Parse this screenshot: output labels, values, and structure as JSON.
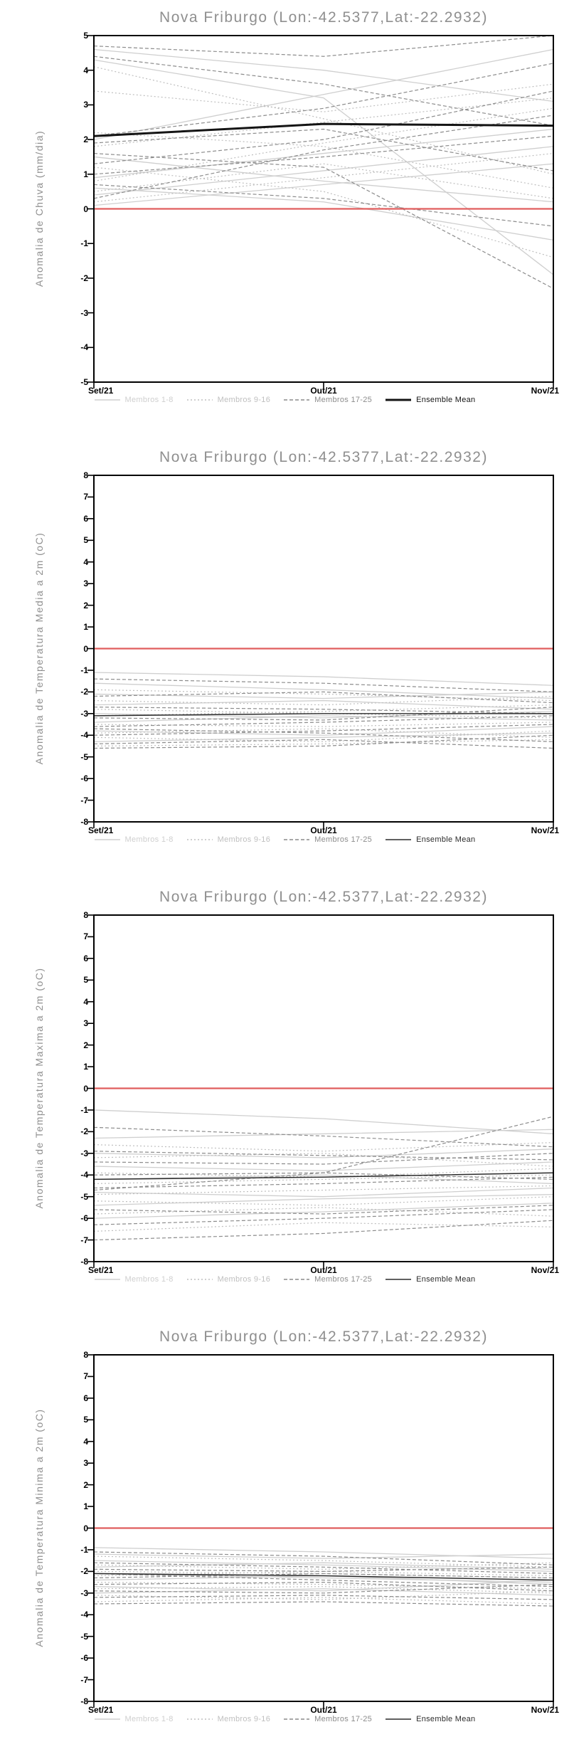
{
  "page": {
    "background": "#ffffff"
  },
  "chart_data": [
    {
      "type": "line",
      "title": "Nova Friburgo (Lon:-42.5377,Lat:-22.2932)",
      "ylabel": "Anomalia de Chuva (mm/dia)",
      "x_labels": [
        "Set/21",
        "Out/21",
        "Nov/21"
      ],
      "ylim": [
        -5,
        5
      ],
      "yticks": [
        5,
        4,
        3,
        2,
        1,
        0,
        -1,
        -2,
        -3,
        -4,
        -5
      ],
      "zero_line": {
        "y": 0,
        "color": "#e05d5d"
      },
      "groups": [
        {
          "name": "Membros 1-8",
          "color": "#cfcfcf",
          "dash": "",
          "width": 1.3,
          "members": [
            [
              4.3,
              3.2,
              -1.9
            ],
            [
              4.6,
              4.0,
              3.1
            ],
            [
              2.0,
              3.3,
              4.6
            ],
            [
              1.5,
              0.8,
              0.2
            ],
            [
              0.9,
              1.6,
              2.3
            ],
            [
              0.6,
              0.2,
              -0.9
            ],
            [
              0.4,
              1.1,
              1.8
            ],
            [
              0.1,
              0.7,
              1.3
            ]
          ]
        },
        {
          "name": "Membros 9-16",
          "color": "#bfbfbf",
          "dash": "2,3",
          "width": 1.2,
          "members": [
            [
              4.1,
              2.6,
              1.0
            ],
            [
              3.4,
              2.8,
              3.6
            ],
            [
              2.2,
              1.8,
              0.6
            ],
            [
              1.8,
              2.5,
              3.2
            ],
            [
              1.2,
              0.5,
              -1.4
            ],
            [
              0.8,
              1.9,
              2.9
            ],
            [
              0.5,
              1.3,
              0.3
            ],
            [
              0.2,
              0.9,
              1.6
            ]
          ]
        },
        {
          "name": "Membros 17-25",
          "color": "#8c8c8c",
          "dash": "5,3",
          "width": 1.2,
          "members": [
            [
              4.7,
              4.4,
              5.0
            ],
            [
              4.4,
              3.6,
              2.4
            ],
            [
              2.1,
              2.9,
              4.2
            ],
            [
              1.9,
              2.3,
              1.1
            ],
            [
              1.6,
              1.2,
              -2.3
            ],
            [
              1.3,
              2.0,
              3.4
            ],
            [
              1.0,
              1.5,
              2.1
            ],
            [
              0.7,
              0.3,
              -0.5
            ],
            [
              0.3,
              1.7,
              2.7
            ]
          ]
        }
      ],
      "ensemble_mean": {
        "name": "Ensemble Mean",
        "color": "#141414",
        "width": 3,
        "values": [
          2.1,
          2.45,
          2.4
        ]
      }
    },
    {
      "type": "line",
      "title": "Nova Friburgo (Lon:-42.5377,Lat:-22.2932)",
      "ylabel": "Anomalia de Temperatura Media a 2m (oC)",
      "x_labels": [
        "Set/21",
        "Out/21",
        "Nov/21"
      ],
      "ylim": [
        -8,
        8
      ],
      "yticks": [
        8,
        7,
        6,
        5,
        4,
        3,
        2,
        1,
        0,
        -1,
        -2,
        -3,
        -4,
        -5,
        -6,
        -7,
        -8
      ],
      "zero_line": {
        "y": 0,
        "color": "#e05d5d"
      },
      "groups": [
        {
          "name": "Membros 1-8",
          "color": "#cfcfcf",
          "dash": "",
          "width": 1.3,
          "members": [
            [
              -1.1,
              -1.3,
              -1.7
            ],
            [
              -1.6,
              -1.9,
              -2.3
            ],
            [
              -2.1,
              -2.3,
              -2.0
            ],
            [
              -2.6,
              -2.4,
              -2.8
            ],
            [
              -3.0,
              -3.2,
              -2.9
            ],
            [
              -3.4,
              -3.1,
              -3.3
            ],
            [
              -3.8,
              -4.0,
              -3.6
            ],
            [
              -4.3,
              -4.1,
              -3.9
            ]
          ]
        },
        {
          "name": "Membros 9-16",
          "color": "#bfbfbf",
          "dash": "2,3",
          "width": 1.2,
          "members": [
            [
              -1.9,
              -2.1,
              -2.4
            ],
            [
              -2.4,
              -2.6,
              -2.2
            ],
            [
              -2.8,
              -3.0,
              -3.2
            ],
            [
              -3.1,
              -2.9,
              -2.6
            ],
            [
              -3.5,
              -3.6,
              -3.4
            ],
            [
              -3.9,
              -3.7,
              -4.1
            ],
            [
              -4.1,
              -4.3,
              -3.8
            ],
            [
              -4.5,
              -4.4,
              -4.2
            ]
          ]
        },
        {
          "name": "Membros 17-25",
          "color": "#8c8c8c",
          "dash": "5,3",
          "width": 1.2,
          "members": [
            [
              -1.4,
              -1.6,
              -2.0
            ],
            [
              -2.2,
              -2.0,
              -2.5
            ],
            [
              -2.7,
              -2.8,
              -3.0
            ],
            [
              -3.2,
              -3.3,
              -2.7
            ],
            [
              -3.6,
              -3.4,
              -3.1
            ],
            [
              -3.7,
              -3.9,
              -4.3
            ],
            [
              -4.0,
              -3.8,
              -3.5
            ],
            [
              -4.4,
              -4.2,
              -4.6
            ],
            [
              -4.6,
              -4.5,
              -4.0
            ]
          ]
        }
      ],
      "ensemble_mean": {
        "name": "Ensemble Mean",
        "color": "#2b2b2b",
        "width": 1.5,
        "values": [
          -3.1,
          -3.0,
          -3.0
        ]
      }
    },
    {
      "type": "line",
      "title": "Nova Friburgo (Lon:-42.5377,Lat:-22.2932)",
      "ylabel": "Anomalia de Temperatura Maxima a 2m (oC)",
      "x_labels": [
        "Set/21",
        "Out/21",
        "Nov/21"
      ],
      "ylim": [
        -8,
        8
      ],
      "yticks": [
        8,
        7,
        6,
        5,
        4,
        3,
        2,
        1,
        0,
        -1,
        -2,
        -3,
        -4,
        -5,
        -6,
        -7,
        -8
      ],
      "zero_line": {
        "y": 0,
        "color": "#e05d5d"
      },
      "groups": [
        {
          "name": "Membros 1-8",
          "color": "#cfcfcf",
          "dash": "",
          "width": 1.3,
          "members": [
            [
              -1.0,
              -1.4,
              -2.1
            ],
            [
              -2.3,
              -2.1,
              -1.9
            ],
            [
              -3.0,
              -3.2,
              -2.8
            ],
            [
              -3.6,
              -3.8,
              -3.4
            ],
            [
              -4.2,
              -4.0,
              -4.4
            ],
            [
              -4.8,
              -5.0,
              -4.6
            ],
            [
              -5.4,
              -5.1,
              -4.9
            ],
            [
              -6.0,
              -5.7,
              -5.3
            ]
          ]
        },
        {
          "name": "Membros 9-16",
          "color": "#bfbfbf",
          "dash": "2,3",
          "width": 1.2,
          "members": [
            [
              -2.6,
              -2.9,
              -2.5
            ],
            [
              -3.2,
              -3.0,
              -3.6
            ],
            [
              -3.9,
              -4.1,
              -3.7
            ],
            [
              -4.4,
              -4.2,
              -4.0
            ],
            [
              -4.9,
              -4.7,
              -4.5
            ],
            [
              -5.2,
              -5.4,
              -5.0
            ],
            [
              -5.8,
              -5.5,
              -5.9
            ],
            [
              -6.6,
              -6.2,
              -6.4
            ]
          ]
        },
        {
          "name": "Membros 17-25",
          "color": "#8c8c8c",
          "dash": "5,3",
          "width": 1.2,
          "members": [
            [
              -1.8,
              -2.2,
              -2.7
            ],
            [
              -2.9,
              -3.1,
              -3.3
            ],
            [
              -3.4,
              -3.5,
              -3.0
            ],
            [
              -4.0,
              -3.9,
              -4.2
            ],
            [
              -4.6,
              -4.4,
              -4.1
            ],
            [
              -4.7,
              -3.9,
              -1.3
            ],
            [
              -5.6,
              -5.8,
              -5.4
            ],
            [
              -6.3,
              -6.0,
              -5.6
            ],
            [
              -7.0,
              -6.7,
              -6.1
            ]
          ]
        }
      ],
      "ensemble_mean": {
        "name": "Ensemble Mean",
        "color": "#2b2b2b",
        "width": 1.5,
        "values": [
          -4.2,
          -4.1,
          -3.9
        ]
      }
    },
    {
      "type": "line",
      "title": "Nova Friburgo (Lon:-42.5377,Lat:-22.2932)",
      "ylabel": "Anomalia de Temperatura Minima a 2m (oC)",
      "x_labels": [
        "Set/21",
        "Out/21",
        "Nov/21"
      ],
      "ylim": [
        -8,
        8
      ],
      "yticks": [
        8,
        7,
        6,
        5,
        4,
        3,
        2,
        1,
        0,
        -1,
        -2,
        -3,
        -4,
        -5,
        -6,
        -7,
        -8
      ],
      "zero_line": {
        "y": 0,
        "color": "#e05d5d"
      },
      "groups": [
        {
          "name": "Membros 1-8",
          "color": "#cfcfcf",
          "dash": "",
          "width": 1.3,
          "members": [
            [
              -0.9,
              -1.1,
              -1.4
            ],
            [
              -1.2,
              -1.4,
              -1.2
            ],
            [
              -1.5,
              -1.7,
              -2.0
            ],
            [
              -1.8,
              -1.6,
              -1.9
            ],
            [
              -2.1,
              -2.3,
              -2.5
            ],
            [
              -2.4,
              -2.2,
              -2.6
            ],
            [
              -2.7,
              -2.9,
              -2.4
            ],
            [
              -3.0,
              -2.8,
              -3.1
            ]
          ]
        },
        {
          "name": "Membros 9-16",
          "color": "#bfbfbf",
          "dash": "2,3",
          "width": 1.2,
          "members": [
            [
              -1.3,
              -1.5,
              -1.8
            ],
            [
              -1.7,
              -1.9,
              -1.6
            ],
            [
              -2.0,
              -2.1,
              -2.3
            ],
            [
              -2.2,
              -2.0,
              -2.2
            ],
            [
              -2.5,
              -2.6,
              -2.8
            ],
            [
              -2.8,
              -2.7,
              -3.0
            ],
            [
              -3.1,
              -3.3,
              -2.9
            ],
            [
              -3.4,
              -3.2,
              -3.5
            ]
          ]
        },
        {
          "name": "Membros 17-25",
          "color": "#8c8c8c",
          "dash": "5,3",
          "width": 1.2,
          "members": [
            [
              -1.1,
              -1.3,
              -1.7
            ],
            [
              -1.6,
              -1.8,
              -2.1
            ],
            [
              -1.9,
              -2.0,
              -1.8
            ],
            [
              -2.1,
              -2.4,
              -2.7
            ],
            [
              -2.3,
              -2.1,
              -2.3
            ],
            [
              -2.6,
              -2.5,
              -2.9
            ],
            [
              -2.9,
              -3.0,
              -2.6
            ],
            [
              -3.2,
              -3.1,
              -3.3
            ],
            [
              -3.5,
              -3.4,
              -3.6
            ]
          ]
        }
      ],
      "ensemble_mean": {
        "name": "Ensemble Mean",
        "color": "#2b2b2b",
        "width": 1.5,
        "values": [
          -2.1,
          -2.2,
          -2.4
        ]
      }
    }
  ]
}
